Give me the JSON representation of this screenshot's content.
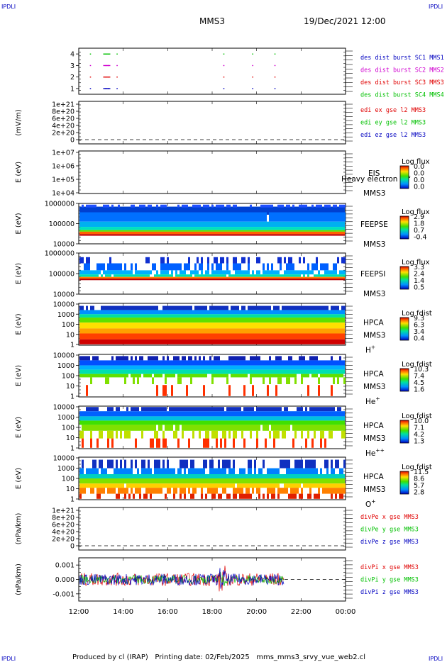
{
  "corner_label": "IPDLI",
  "header": {
    "mission": "MMS3",
    "datetime": "19/Dec/2021 12:00"
  },
  "footer": "Produced by cl (IRAP)   Printing date: 02/Feb/2025   mms_mms3_srvy_vue_web2.cl",
  "colors": {
    "red": "#e00000",
    "green": "#00c000",
    "blue": "#0000c0",
    "magenta": "#d000d0"
  },
  "chart_data": [
    {
      "type": "scatter",
      "panel": "burst",
      "ylim": [
        0.5,
        4.5
      ],
      "yticks": [
        "1",
        "2",
        "3",
        "4"
      ],
      "series": [
        {
          "name": "des dist burst SC1 MMS1",
          "y": 4,
          "x": [
            12.5,
            13.1,
            13.2,
            13.3,
            13.7,
            18.5,
            19.8,
            20.8
          ]
        },
        {
          "name": "des dist burst SC2 MMS2",
          "y": 3,
          "x": [
            12.5,
            13.1,
            13.2,
            13.3,
            13.7,
            18.5,
            19.8,
            20.8
          ]
        },
        {
          "name": "des dist burst SC3 MMS3",
          "y": 2,
          "x": [
            12.5,
            13.1,
            13.2,
            13.3,
            13.7,
            18.5,
            19.8,
            20.8
          ]
        },
        {
          "name": "des dist burst SC4 MMS4",
          "y": 1,
          "x": [
            12.5,
            13.1,
            13.2,
            13.3,
            13.7,
            18.5,
            19.8,
            20.8
          ]
        }
      ]
    },
    {
      "type": "line",
      "panel": "edi",
      "ylabel": "(mV/m)",
      "yticks": [
        "1e+21",
        "8e+20",
        "6e+20",
        "4e+20",
        "2e+20",
        "0"
      ],
      "series": [
        {
          "name": "edi ex gse l2 MMS3"
        },
        {
          "name": "edi ey gse l2 MMS3"
        },
        {
          "name": "edi ez gse l2 MMS3"
        }
      ]
    },
    {
      "type": "heatmap",
      "panel": "eis",
      "ylabel": "E (eV)",
      "yticks": [
        "1e+07",
        "1e+06",
        "1e+05",
        "1e+04"
      ],
      "instrument": [
        "EIS",
        "MMS3"
      ],
      "overlay_label": "Heavy electron tof",
      "colorbar": {
        "title": "Log flux",
        "ticks": [
          "0.0",
          "0.0",
          "0.0",
          "0.0"
        ]
      }
    },
    {
      "type": "heatmap",
      "panel": "feeps_e",
      "ylabel": "E (eV)",
      "yticks": [
        "1000000",
        "100000",
        "10000"
      ],
      "instrument": [
        "FEEPSE",
        "MMS3"
      ],
      "colorbar": {
        "title": "Log flux",
        "ticks": [
          "2.9",
          "1.8",
          "0.7",
          "-0.4"
        ]
      }
    },
    {
      "type": "heatmap",
      "panel": "feeps_i",
      "ylabel": "E (eV)",
      "yticks": [
        "1000000",
        "100000",
        "10000"
      ],
      "instrument": [
        "FEEPSI",
        "MMS3"
      ],
      "colorbar": {
        "title": "Log flux",
        "ticks": [
          "3.3",
          "2.4",
          "1.4",
          "0.5"
        ]
      }
    },
    {
      "type": "heatmap",
      "panel": "hpca_h",
      "ylabel": "E (eV)",
      "yticks": [
        "10000",
        "1000",
        "100",
        "10",
        "1"
      ],
      "instrument": [
        "HPCA",
        "MMS3"
      ],
      "species": "H",
      "charge": "+",
      "colorbar": {
        "title": "Log fdist",
        "ticks": [
          "9.3",
          "6.3",
          "3.4",
          "0.4"
        ]
      }
    },
    {
      "type": "heatmap",
      "panel": "hpca_he",
      "ylabel": "E (eV)",
      "yticks": [
        "10000",
        "1000",
        "100",
        "10",
        "1"
      ],
      "instrument": [
        "HPCA",
        "MMS3"
      ],
      "species": "He",
      "charge": "+",
      "colorbar": {
        "title": "Log fdist",
        "ticks": [
          "10.3",
          "7.4",
          "4.5",
          "1.6"
        ]
      }
    },
    {
      "type": "heatmap",
      "panel": "hpca_he2",
      "ylabel": "E (eV)",
      "yticks": [
        "10000",
        "1000",
        "100",
        "10",
        "1"
      ],
      "instrument": [
        "HPCA",
        "MMS3"
      ],
      "species": "He",
      "charge": "++",
      "colorbar": {
        "title": "Log fdist",
        "ticks": [
          "10.0",
          "7.1",
          "4.2",
          "1.3"
        ]
      }
    },
    {
      "type": "heatmap",
      "panel": "hpca_o",
      "ylabel": "E (eV)",
      "yticks": [
        "10000",
        "1000",
        "100",
        "10",
        "1"
      ],
      "instrument": [
        "HPCA",
        "MMS3"
      ],
      "species": "O",
      "charge": "+",
      "colorbar": {
        "title": "Log fdist",
        "ticks": [
          "11.5",
          "8.6",
          "5.7",
          "2.8"
        ]
      }
    },
    {
      "type": "line",
      "panel": "divpe",
      "ylabel": "(nPa/km)",
      "yticks": [
        "1e+21",
        "8e+20",
        "6e+20",
        "4e+20",
        "2e+20",
        "0"
      ],
      "series": [
        {
          "name": "divPe x gse MMS3"
        },
        {
          "name": "divPe y gse MMS3"
        },
        {
          "name": "divPe z gse MMS3"
        }
      ]
    },
    {
      "type": "line",
      "panel": "divpi",
      "ylabel": "(nPa/km)",
      "yticks": [
        "0.001",
        "0.000",
        "-0.001"
      ],
      "ylim": [
        -0.0015,
        0.0015
      ],
      "data_end_time": "21:15",
      "series": [
        {
          "name": "divPi x gse MMS3"
        },
        {
          "name": "divPi y gse MMS3"
        },
        {
          "name": "divPi z gse MMS3"
        }
      ]
    }
  ],
  "x_axis": {
    "ticks": [
      "12:00",
      "14:00",
      "16:00",
      "18:00",
      "20:00",
      "22:00",
      "00:00"
    ],
    "range_hours": [
      12,
      24
    ]
  }
}
